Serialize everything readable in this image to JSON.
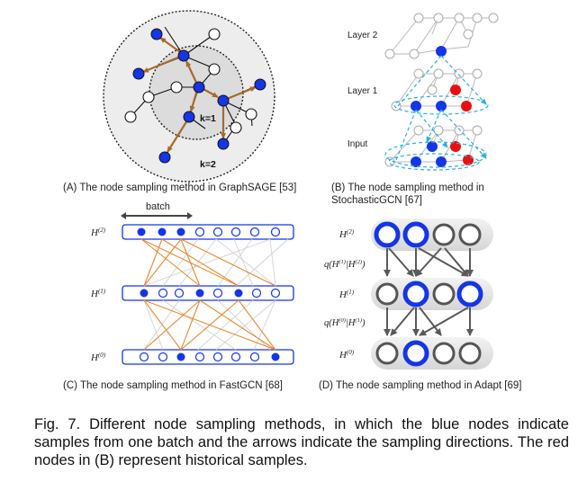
{
  "panelA": {
    "caption": "(A) The node sampling method in GraphSAGE [53]",
    "label_k1": "k=1",
    "label_k2": "k=2"
  },
  "panelB": {
    "caption_line1": "(B) The node sampling method in",
    "caption_line2": "StochasticGCN [67]",
    "label_layer2": "Layer 2",
    "label_layer1": "Layer 1",
    "label_input": "Input"
  },
  "panelC": {
    "caption": "(C) The node sampling method in FastGCN [68]",
    "label_batch": "batch",
    "h2_base": "H",
    "h2_sup": "(2)",
    "h1_base": "H",
    "h1_sup": "(1)",
    "h0_base": "H",
    "h0_sup": "(0)"
  },
  "panelD": {
    "caption": "(D) The node sampling method in Adapt [69]",
    "h2_base": "H",
    "h2_sup": "(2)",
    "h1_base": "H",
    "h1_sup": "(1)",
    "h0_base": "H",
    "h0_sup": "(0)",
    "q_upper": "q(H",
    "q_upper_sup1": "(1)",
    "q_upper_mid": "|H",
    "q_upper_sup2": "(2)",
    "q_upper_end": ")",
    "q_lower": "q(H",
    "q_lower_sup1": "(0)",
    "q_lower_mid": "|H",
    "q_lower_sup2": "(1)",
    "q_lower_end": ")"
  },
  "figure": {
    "caption": "Fig. 7. Different node sampling methods, in which the blue nodes indicate samples from one batch and the arrows indicate the sampling directions. The red nodes in (B) represent historical samples."
  },
  "colors": {
    "blue": "#1436e6",
    "red": "#e81010",
    "brown": "#a86a2a",
    "orange": "#e8892e",
    "cyan": "#2ab0dd",
    "gray": "#c8c8c8"
  }
}
